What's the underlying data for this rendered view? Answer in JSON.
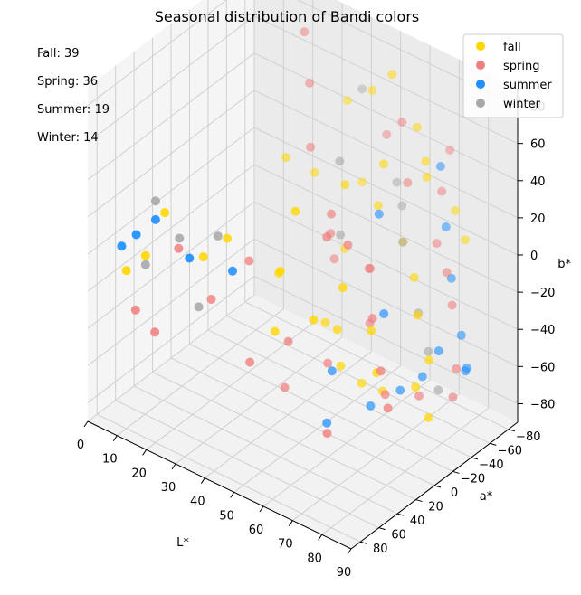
{
  "chart_data": {
    "type": "scatter",
    "projection": "3d",
    "title": "Seasonal distribution of Bandi colors",
    "xlabel": "L*",
    "ylabel": "a*",
    "zlabel": "b*",
    "xlim": [
      0,
      90
    ],
    "ylim": [
      -90,
      90
    ],
    "zlim": [
      -90,
      90
    ],
    "xticks": [
      0,
      10,
      20,
      30,
      40,
      50,
      60,
      70,
      80,
      90
    ],
    "yticks": [
      -80,
      -60,
      -40,
      -20,
      0,
      20,
      40,
      60,
      80
    ],
    "zticks": [
      -80,
      -60,
      -40,
      -20,
      0,
      20,
      40,
      60,
      80
    ],
    "grid": true,
    "legend_position": "top-right",
    "counts_text": [
      "Fall: 39",
      "Spring: 36",
      "Summer: 19",
      "Winter: 14"
    ],
    "series": [
      {
        "name": "fall",
        "color": "#FFD700",
        "points": [
          [
            45,
            -75,
            60
          ],
          [
            35,
            -80,
            45
          ],
          [
            55,
            -65,
            80
          ],
          [
            62,
            -70,
            55
          ],
          [
            68,
            -60,
            45
          ],
          [
            75,
            -70,
            20
          ],
          [
            80,
            -65,
            10
          ],
          [
            70,
            -55,
            40
          ],
          [
            60,
            -40,
            45
          ],
          [
            40,
            -80,
            5
          ],
          [
            30,
            -60,
            10
          ],
          [
            25,
            -45,
            20
          ],
          [
            50,
            -30,
            30
          ],
          [
            55,
            -50,
            15
          ],
          [
            65,
            -45,
            5
          ],
          [
            72,
            -35,
            -5
          ],
          [
            78,
            -20,
            -15
          ],
          [
            85,
            -10,
            -30
          ],
          [
            82,
            -5,
            -45
          ],
          [
            88,
            0,
            -55
          ],
          [
            60,
            10,
            -25
          ],
          [
            55,
            20,
            -20
          ],
          [
            45,
            30,
            -30
          ],
          [
            50,
            40,
            10
          ],
          [
            35,
            50,
            20
          ],
          [
            30,
            60,
            10
          ],
          [
            20,
            70,
            30
          ],
          [
            15,
            75,
            5
          ],
          [
            10,
            80,
            -5
          ],
          [
            40,
            10,
            -10
          ],
          [
            65,
            20,
            5
          ],
          [
            70,
            5,
            -20
          ],
          [
            75,
            15,
            -35
          ],
          [
            48,
            -15,
            -40
          ],
          [
            58,
            0,
            -50
          ],
          [
            62,
            -10,
            -60
          ],
          [
            66,
            -20,
            -65
          ],
          [
            52,
            30,
            40
          ],
          [
            42,
            -55,
            -20
          ]
        ]
      },
      {
        "name": "spring",
        "color": "#F08080",
        "points": [
          [
            60,
            -60,
            60
          ],
          [
            50,
            -75,
            40
          ],
          [
            70,
            -80,
            45
          ],
          [
            72,
            -65,
            30
          ],
          [
            65,
            -50,
            35
          ],
          [
            75,
            -50,
            10
          ],
          [
            80,
            -45,
            0
          ],
          [
            85,
            -35,
            -10
          ],
          [
            88,
            -30,
            -40
          ],
          [
            90,
            -20,
            -50
          ],
          [
            80,
            -15,
            -55
          ],
          [
            70,
            -10,
            -60
          ],
          [
            60,
            -25,
            -35
          ],
          [
            55,
            -40,
            -15
          ],
          [
            45,
            -30,
            0
          ],
          [
            40,
            -50,
            -25
          ],
          [
            35,
            -40,
            35
          ],
          [
            30,
            -55,
            60
          ],
          [
            25,
            -65,
            80
          ],
          [
            50,
            -15,
            20
          ],
          [
            68,
            0,
            10
          ],
          [
            72,
            10,
            -10
          ],
          [
            78,
            20,
            -30
          ],
          [
            82,
            25,
            -45
          ],
          [
            58,
            15,
            25
          ],
          [
            48,
            25,
            -35
          ],
          [
            38,
            35,
            -50
          ],
          [
            28,
            45,
            -20
          ],
          [
            20,
            55,
            5
          ],
          [
            15,
            65,
            -40
          ],
          [
            10,
            70,
            -30
          ],
          [
            62,
            5,
            20
          ],
          [
            52,
            -5,
            -55
          ],
          [
            42,
            10,
            -70
          ],
          [
            33,
            20,
            -5
          ],
          [
            66,
            40,
            -65
          ]
        ]
      },
      {
        "name": "summer",
        "color": "#1E90FF",
        "points": [
          [
            70,
            -70,
            40
          ],
          [
            75,
            -60,
            15
          ],
          [
            80,
            -50,
            -5
          ],
          [
            85,
            -45,
            -30
          ],
          [
            88,
            -40,
            -45
          ],
          [
            82,
            -30,
            -35
          ],
          [
            78,
            -25,
            -50
          ],
          [
            72,
            -20,
            -60
          ],
          [
            65,
            -10,
            -70
          ],
          [
            60,
            -35,
            20
          ],
          [
            55,
            0,
            -55
          ],
          [
            90,
            -35,
            -40
          ],
          [
            40,
            60,
            10
          ],
          [
            30,
            75,
            15
          ],
          [
            20,
            80,
            30
          ],
          [
            15,
            85,
            20
          ],
          [
            10,
            85,
            10
          ],
          [
            68,
            -15,
            -20
          ],
          [
            58,
            15,
            -75
          ]
        ]
      },
      {
        "name": "winter",
        "color": "#A9A9A9",
        "points": [
          [
            40,
            -80,
            55
          ],
          [
            55,
            -70,
            20
          ],
          [
            60,
            -60,
            15
          ],
          [
            65,
            -45,
            5
          ],
          [
            75,
            -30,
            -20
          ],
          [
            80,
            -25,
            -35
          ],
          [
            85,
            -20,
            -50
          ],
          [
            45,
            -40,
            35
          ],
          [
            50,
            -25,
            5
          ],
          [
            35,
            60,
            25
          ],
          [
            25,
            70,
            20
          ],
          [
            20,
            80,
            40
          ],
          [
            15,
            75,
            0
          ],
          [
            30,
            65,
            -15
          ]
        ]
      }
    ]
  }
}
